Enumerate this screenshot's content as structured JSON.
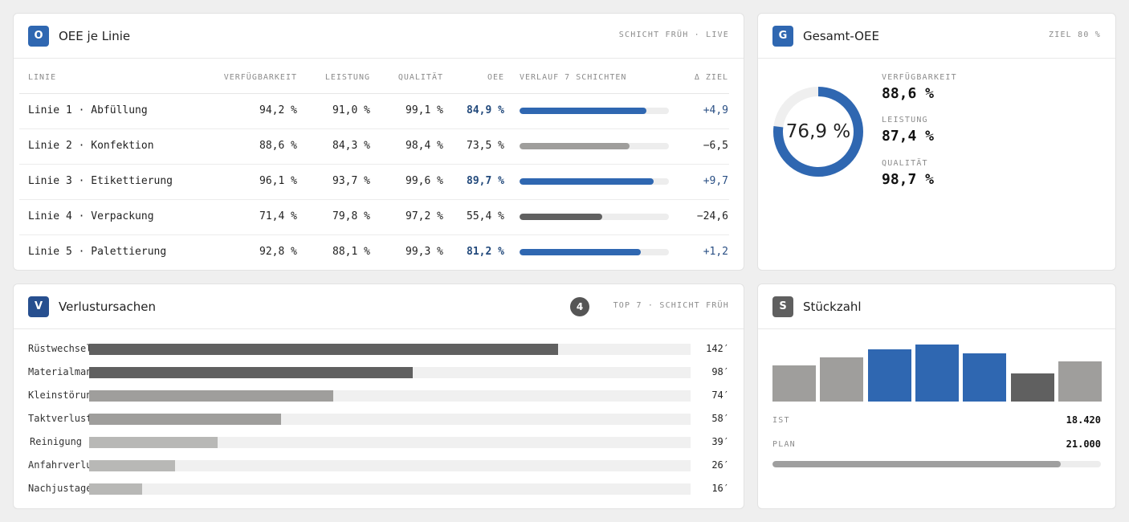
{
  "colors": {
    "blue": "#2f67b1",
    "darkblue": "#274f8f",
    "dark": "#606060",
    "mid": "#9f9e9c",
    "light": "#b8b8b6",
    "delta_pos": "#2a4f84",
    "oee_blue": "#234a7c"
  },
  "oee_card": {
    "badge": "O",
    "title": "OEE je Linie",
    "meta": "SCHICHT FRÜH · LIVE",
    "headers": {
      "linie": "LINIE",
      "verf": "VERFÜGBARKEIT",
      "leis": "LEISTUNG",
      "qual": "QUALITÄT",
      "oee": "OEE",
      "verlauf": "VERLAUF 7 SCHICHTEN",
      "delta": "Δ ZIEL"
    },
    "rows": [
      {
        "name": "Linie 1 · Abfüllung",
        "verf": "94,2 %",
        "leis": "91,0 %",
        "qual": "99,1 %",
        "oee": "84,9 %",
        "delta": "+4,9",
        "level": 0.849,
        "tone": "blue"
      },
      {
        "name": "Linie 2 · Konfektion",
        "verf": "88,6 %",
        "leis": "84,3 %",
        "qual": "98,4 %",
        "oee": "73,5 %",
        "delta": "−6,5",
        "level": 0.735,
        "tone": "mid"
      },
      {
        "name": "Linie 3 · Etikettierung",
        "verf": "96,1 %",
        "leis": "93,7 %",
        "qual": "99,6 %",
        "oee": "89,7 %",
        "delta": "+9,7",
        "level": 0.897,
        "tone": "blue"
      },
      {
        "name": "Linie 4 · Verpackung",
        "verf": "71,4 %",
        "leis": "79,8 %",
        "qual": "97,2 %",
        "oee": "55,4 %",
        "delta": "−24,6",
        "level": 0.554,
        "tone": "dark"
      },
      {
        "name": "Linie 5 · Palettierung",
        "verf": "92,8 %",
        "leis": "88,1 %",
        "qual": "99,3 %",
        "oee": "81,2 %",
        "delta": "+1,2",
        "level": 0.812,
        "tone": "blue"
      }
    ]
  },
  "gesamt_card": {
    "badge": "G",
    "title": "Gesamt-OEE",
    "meta": "ZIEL 80 %",
    "donut_value": "76,9 %",
    "donut_level": 0.769,
    "kpis": [
      {
        "label": "VERFÜGBARKEIT",
        "value": "88,6 %"
      },
      {
        "label": "LEISTUNG",
        "value": "87,4 %"
      },
      {
        "label": "QUALITÄT",
        "value": "98,7 %"
      }
    ]
  },
  "verlust_card": {
    "badge": "V",
    "title": "Verlustursachen",
    "count": "4",
    "meta": "TOP 7 · SCHICHT FRÜH",
    "items": [
      {
        "label": "Rüstwechsel",
        "value": "142′",
        "minutes": 142,
        "tone": "dark"
      },
      {
        "label": "Materialmangel",
        "value": "98′",
        "minutes": 98,
        "tone": "dark"
      },
      {
        "label": "Kleinstörungen",
        "value": "74′",
        "minutes": 74,
        "tone": "mid"
      },
      {
        "label": "Taktverlust",
        "value": "58′",
        "minutes": 58,
        "tone": "mid"
      },
      {
        "label": "Reinigung",
        "value": "39′",
        "minutes": 39,
        "tone": "light"
      },
      {
        "label": "Anfahrverluste",
        "value": "26′",
        "minutes": 26,
        "tone": "light"
      },
      {
        "label": "Nachjustage",
        "value": "16′",
        "minutes": 16,
        "tone": "light"
      }
    ]
  },
  "stueck_card": {
    "badge": "S",
    "title": "Stückzahl",
    "bars": [
      {
        "level": 0.64,
        "tone": "mid"
      },
      {
        "level": 0.77,
        "tone": "mid"
      },
      {
        "level": 0.91,
        "tone": "blue"
      },
      {
        "level": 1.0,
        "tone": "blue"
      },
      {
        "level": 0.84,
        "tone": "blue"
      },
      {
        "level": 0.5,
        "tone": "dark"
      },
      {
        "level": 0.71,
        "tone": "mid"
      }
    ],
    "ist_label": "IST",
    "ist_value": "18.420",
    "plan_label": "PLAN",
    "plan_value": "21.000",
    "progress": 0.877
  }
}
